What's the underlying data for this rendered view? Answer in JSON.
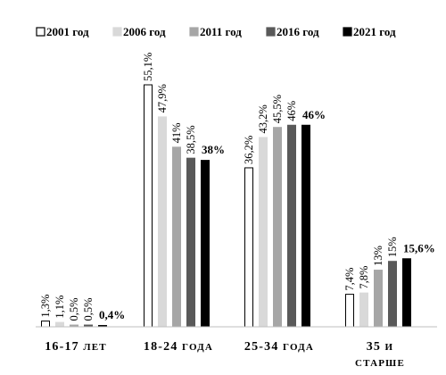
{
  "chart_data": {
    "type": "bar",
    "title": "",
    "xlabel": "",
    "ylabel": "",
    "ylim": [
      0,
      60
    ],
    "grid": false,
    "legend_position": "top",
    "categories": [
      [
        "16-17",
        "лет"
      ],
      [
        "18-24",
        "года"
      ],
      [
        "25-34",
        "года"
      ],
      [
        "35",
        "и",
        "старше"
      ]
    ],
    "series": [
      {
        "name": "2001 год",
        "fill": "#ffffff",
        "stroke": "#000000",
        "values": [
          1.3,
          55.1,
          36.2,
          7.4
        ],
        "labels": [
          "1,3%",
          "55,1%",
          "36,2%",
          "7,4%"
        ]
      },
      {
        "name": "2006 год",
        "fill": "#d9d9d9",
        "stroke": "#d9d9d9",
        "values": [
          1.1,
          47.9,
          43.2,
          7.8
        ],
        "labels": [
          "1,1%",
          "47,9%",
          "43,2%",
          "7,8%"
        ]
      },
      {
        "name": "2011 год",
        "fill": "#a6a6a6",
        "stroke": "#a6a6a6",
        "values": [
          0.5,
          41,
          45.5,
          13
        ],
        "labels": [
          "0,5%",
          "41%",
          "45,5%",
          "13%"
        ]
      },
      {
        "name": "2016 год",
        "fill": "#595959",
        "stroke": "#595959",
        "values": [
          0.5,
          38.5,
          46,
          15
        ],
        "labels": [
          "0,5%",
          "38,5%",
          "46%",
          "15%"
        ]
      },
      {
        "name": "2021 год",
        "fill": "#000000",
        "stroke": "#000000",
        "values": [
          0.4,
          38,
          46,
          15.6
        ],
        "labels": [
          "0,4%",
          "38%",
          "46%",
          "15,6%"
        ],
        "label_bold": true
      }
    ]
  }
}
